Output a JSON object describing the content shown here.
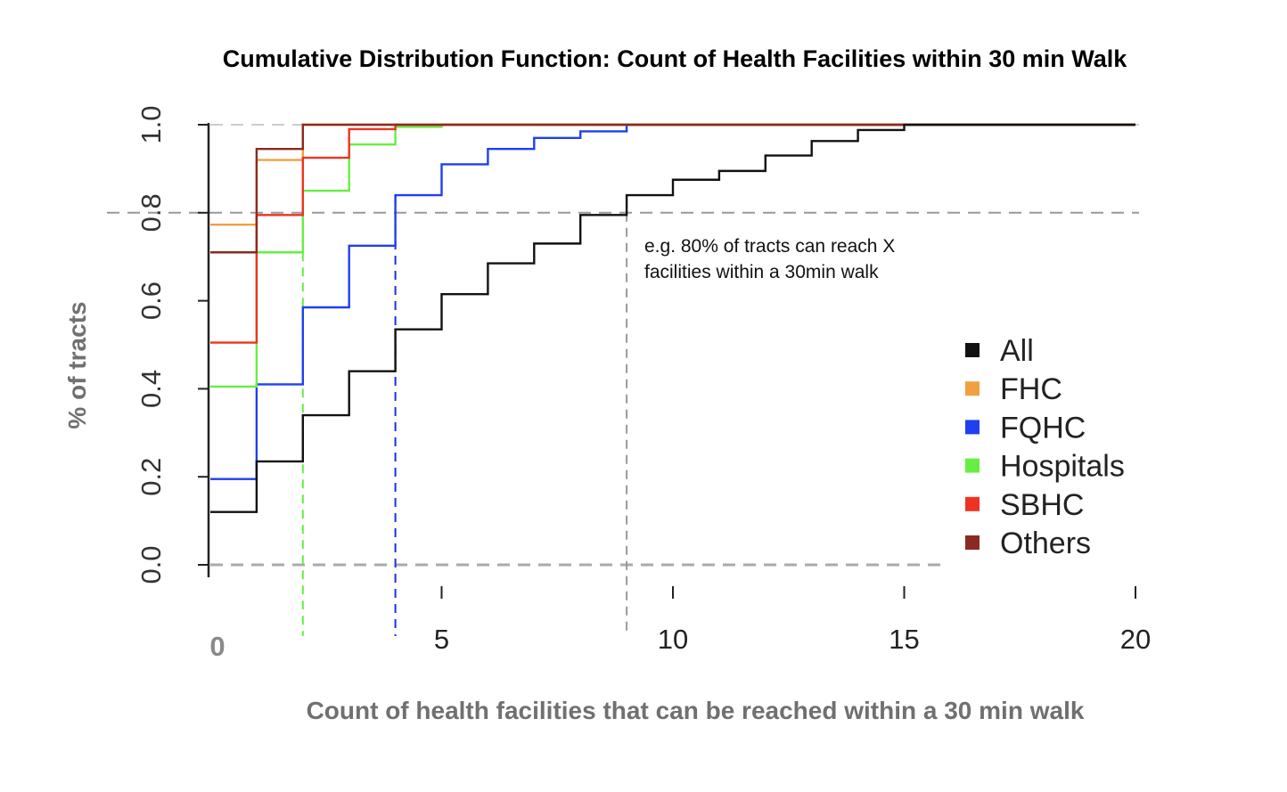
{
  "chart_data": {
    "type": "line",
    "subtype": "step-cdf",
    "title": "Cumulative Distribution Function: Count of Health Facilities within 30 min Walk",
    "xlabel": "Count of health facilities that can be reached within a 30 min walk",
    "ylabel": "% of tracts",
    "xlim": [
      0,
      20
    ],
    "ylim": [
      0,
      1
    ],
    "xticks": [
      0,
      5,
      10,
      15,
      20
    ],
    "yticks": [
      "0.0",
      "0.2",
      "0.4",
      "0.6",
      "0.8",
      "1.0"
    ],
    "grid": false,
    "legend_position": "right",
    "reference_lines": [
      {
        "orientation": "horizontal",
        "y": 0.8,
        "color": "#999999"
      },
      {
        "orientation": "horizontal",
        "y": 1.0,
        "color": "#cccccc"
      },
      {
        "orientation": "horizontal",
        "y": 0.0,
        "color": "#aaaaaa"
      },
      {
        "orientation": "vertical",
        "x": 2,
        "color": "#66ee44"
      },
      {
        "orientation": "vertical",
        "x": 4,
        "color": "#1a2ee0"
      },
      {
        "orientation": "vertical",
        "x": 9,
        "color": "#999999"
      }
    ],
    "annotation": "e.g. 80% of tracts can reach X facilities within a 30min walk",
    "series": [
      {
        "name": "All",
        "color": "#111111",
        "x": [
          0,
          1,
          2,
          3,
          4,
          5,
          6,
          7,
          8,
          9,
          10,
          11,
          12,
          13,
          14,
          15,
          16,
          20
        ],
        "y": [
          0.12,
          0.235,
          0.34,
          0.44,
          0.535,
          0.615,
          0.685,
          0.73,
          0.795,
          0.84,
          0.875,
          0.895,
          0.93,
          0.963,
          0.988,
          1.0,
          1.0,
          1.0
        ]
      },
      {
        "name": "FHC",
        "color": "#f0a040",
        "x": [
          0,
          1,
          2,
          3,
          20
        ],
        "y": [
          0.773,
          0.92,
          1.0,
          1.0,
          1.0
        ]
      },
      {
        "name": "FQHC",
        "color": "#1f3ff0",
        "x": [
          0,
          1,
          2,
          3,
          4,
          5,
          6,
          7,
          8,
          9,
          10,
          20
        ],
        "y": [
          0.195,
          0.41,
          0.585,
          0.725,
          0.84,
          0.91,
          0.945,
          0.97,
          0.985,
          1.0,
          1.0,
          1.0
        ]
      },
      {
        "name": "Hospitals",
        "color": "#66ee44",
        "x": [
          0,
          1,
          2,
          3,
          4,
          5,
          6,
          20
        ],
        "y": [
          0.405,
          0.71,
          0.85,
          0.955,
          0.995,
          1.0,
          1.0,
          1.0
        ]
      },
      {
        "name": "SBHC",
        "color": "#ee3322",
        "x": [
          0,
          1,
          2,
          3,
          4,
          20
        ],
        "y": [
          0.505,
          0.795,
          0.925,
          0.99,
          1.0,
          1.0
        ]
      },
      {
        "name": "Others",
        "color": "#8b2a22",
        "x": [
          0,
          1,
          2,
          20
        ],
        "y": [
          0.71,
          0.945,
          1.0,
          1.0
        ]
      }
    ]
  }
}
